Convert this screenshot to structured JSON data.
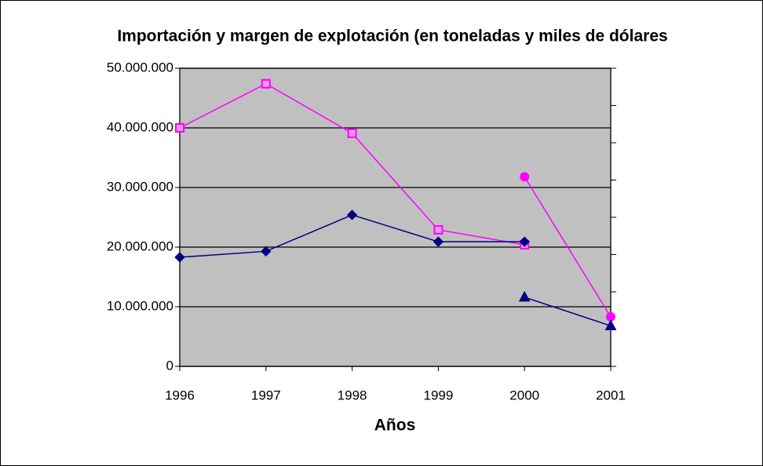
{
  "chart_data": {
    "type": "line",
    "title": "Importación y margen de explotación (en toneladas y miles de dólares",
    "x_label": "Años",
    "x": [
      1996,
      1997,
      1998,
      1999,
      2000,
      2001
    ],
    "xlim": [
      1996,
      2001
    ],
    "xticks": [
      1996,
      1997,
      1998,
      1999,
      2000,
      2001
    ],
    "ylim": [
      0,
      50000000
    ],
    "yticks": [
      0,
      {
        "value": 10000000,
        "label": "10.000.000"
      },
      {
        "value": 20000000,
        "label": "20.000.000"
      },
      {
        "value": 30000000,
        "label": "30.000.000"
      },
      {
        "value": 40000000,
        "label": "40.000.000"
      },
      {
        "value": 50000000,
        "label": "50.000.000"
      }
    ],
    "grid": true,
    "plot_background": "#c0c0c0",
    "series": [
      {
        "color": "#ff00ff",
        "marker": "square",
        "values": [
          40000000,
          47400000,
          39100000,
          22900000,
          20400000,
          null
        ]
      },
      {
        "color": "#000080",
        "marker": "diamond",
        "values": [
          18300000,
          19300000,
          25400000,
          20900000,
          20900000,
          null
        ]
      },
      {
        "color": "#ff00ff",
        "marker": "circle",
        "values": [
          null,
          null,
          null,
          null,
          31800000,
          8300000
        ]
      },
      {
        "color": "#000080",
        "marker": "triangle",
        "values": [
          null,
          null,
          null,
          null,
          11600000,
          6800000
        ]
      }
    ]
  }
}
